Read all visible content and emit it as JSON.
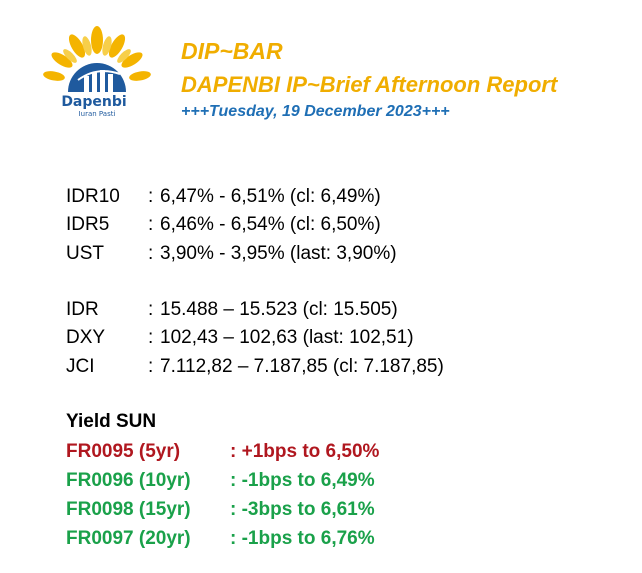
{
  "header": {
    "logo_name": "Dapenbi",
    "logo_tagline": "Iuran Pasti",
    "title": "DIP~BAR",
    "subtitle": "DAPENBI IP~Brief Afternoon Report",
    "date": "+++Tuesday, 19 December 2023+++"
  },
  "colors": {
    "brand_orange": "#f0ad00",
    "brand_blue": "#1f6fb5",
    "up_red": "#b0171f",
    "down_green": "#1aa14a"
  },
  "yields_block": [
    {
      "label": "IDR10",
      "sep": ":",
      "value": "6,47% - 6,51% (cl: 6,49%)"
    },
    {
      "label": "IDR5",
      "sep": ":",
      "value": "6,46% - 6,54% (cl: 6,50%)"
    },
    {
      "label": "UST",
      "sep": ":",
      "value": "3,90% - 3,95% (last: 3,90%)"
    }
  ],
  "market_block": [
    {
      "label": "IDR",
      "sep": ":",
      "value": "15.488 – 15.523 (cl: 15.505)"
    },
    {
      "label": "DXY",
      "sep": ":",
      "value": "102,43 – 102,63 (last: 102,51)"
    },
    {
      "label": "JCI",
      "sep": ":",
      "value": "7.112,82 – 7.187,85 (cl: 7.187,85)"
    }
  ],
  "yield_sun": {
    "heading": "Yield SUN",
    "rows": [
      {
        "code": "FR0095 (5yr)",
        "value": ": +1bps to 6,50%",
        "direction": "up"
      },
      {
        "code": "FR0096 (10yr)",
        "value": ": -1bps to 6,49%",
        "direction": "down"
      },
      {
        "code": "FR0098 (15yr)",
        "value": ": -3bps to 6,61%",
        "direction": "down"
      },
      {
        "code": "FR0097 (20yr)",
        "value": ": -1bps to 6,76%",
        "direction": "down"
      }
    ]
  }
}
